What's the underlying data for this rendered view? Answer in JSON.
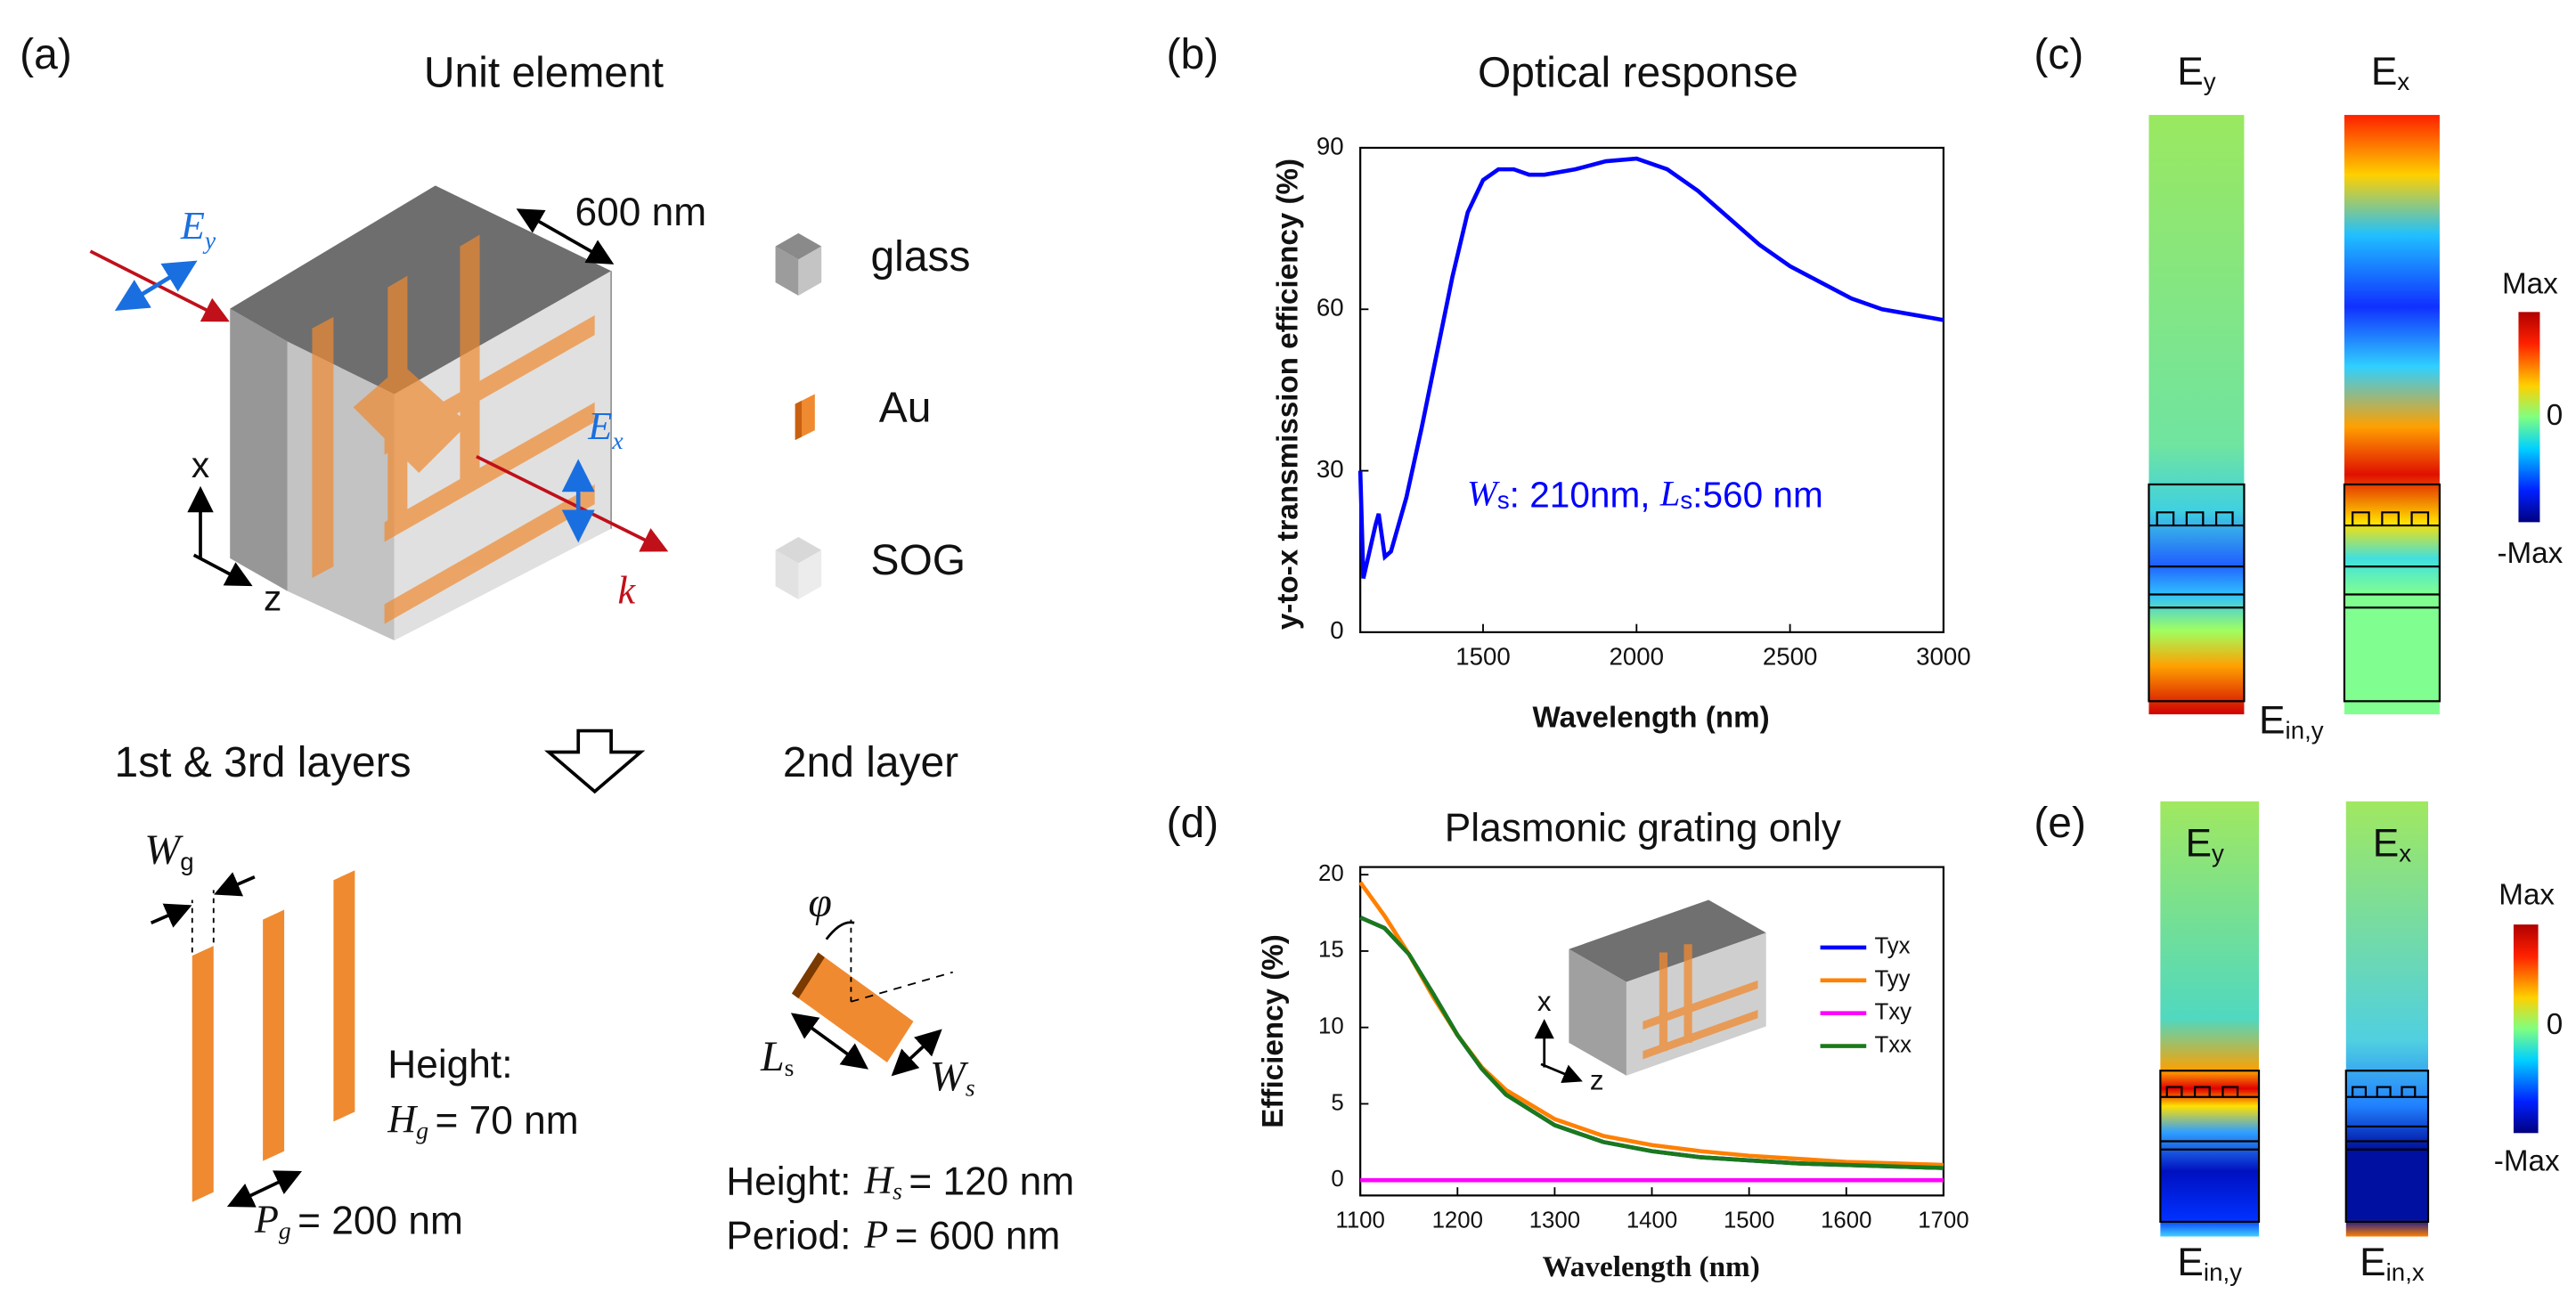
{
  "panel_labels": [
    "(a)",
    "(b)",
    "(c)",
    "(d)",
    "(e)"
  ],
  "unit_element": {
    "title": "Unit element",
    "dimension": "600 nm",
    "axes": [
      "x",
      "z"
    ],
    "field_y": [
      "E",
      "y"
    ],
    "field_x": [
      "E",
      "x"
    ],
    "wavevector": "k",
    "legend": [
      "glass",
      "Au",
      "SOG"
    ]
  },
  "layers": {
    "first_third": {
      "title": "1st & 3rd layers",
      "width": [
        "W",
        "g"
      ],
      "height_label": "Height:",
      "height": [
        "H",
        "g",
        "= 70 nm"
      ],
      "period": [
        "P",
        "g",
        "= 200 nm"
      ]
    },
    "second": {
      "title": "2nd layer",
      "angle": "φ",
      "length": [
        "L",
        "s"
      ],
      "width": [
        "W",
        "s"
      ],
      "height": [
        "Height:",
        "H",
        "s",
        "= 120 nm"
      ],
      "period": [
        "Period:",
        "P",
        "= 600 nm"
      ]
    }
  },
  "chart_data": [
    {
      "type": "line",
      "title": "Optical response",
      "x_label": "Wavelength (nm)",
      "y_label": "y-to-x transmission efficiency (%)",
      "annotation": [
        "W",
        "s",
        ": 210nm, ",
        "L",
        "s",
        ":560 nm"
      ],
      "x": [
        1100,
        1110,
        1130,
        1150,
        1160,
        1180,
        1200,
        1250,
        1300,
        1350,
        1400,
        1450,
        1500,
        1550,
        1600,
        1650,
        1700,
        1800,
        1900,
        2000,
        2100,
        2200,
        2300,
        2400,
        2500,
        2600,
        2700,
        2800,
        2900,
        3000
      ],
      "values": [
        30,
        10,
        15,
        20,
        22,
        14,
        15,
        25,
        38,
        52,
        66,
        78,
        84,
        86,
        86,
        85,
        85,
        86,
        87.5,
        88,
        86,
        82,
        77,
        72,
        68,
        65,
        62,
        60,
        59,
        58
      ],
      "color": "#0000ff",
      "xlim": [
        1100,
        3000
      ],
      "ylim": [
        0,
        90
      ],
      "xticks": [
        1500,
        2000,
        2500,
        3000
      ],
      "yticks": [
        0,
        30,
        60,
        90
      ]
    },
    {
      "type": "line",
      "title": "Plasmonic grating only",
      "x_label": "Wavelength (nm)",
      "y_label": "Efficiency (%)",
      "inset_axes": [
        "x",
        "z"
      ],
      "legend": "upper right",
      "x": [
        1100,
        1125,
        1150,
        1175,
        1200,
        1225,
        1250,
        1300,
        1350,
        1400,
        1450,
        1500,
        1550,
        1600,
        1650,
        1700
      ],
      "series": [
        {
          "name": "Tyx",
          "color": "#0000ff",
          "values": [
            17.2,
            16.5,
            14.8,
            12.2,
            9.5,
            7.3,
            5.6,
            3.6,
            2.5,
            1.9,
            1.5,
            1.3,
            1.1,
            1.0,
            0.9,
            0.8
          ]
        },
        {
          "name": "Tyy",
          "color": "#ff8000",
          "values": [
            19.5,
            17.3,
            14.8,
            12,
            9.5,
            7.4,
            5.9,
            4.0,
            2.9,
            2.3,
            1.9,
            1.6,
            1.4,
            1.2,
            1.1,
            1.0
          ]
        },
        {
          "name": "Txy",
          "color": "#ff00ff",
          "values": [
            0,
            0,
            0,
            0,
            0,
            0,
            0,
            0,
            0,
            0,
            0,
            0,
            0,
            0,
            0,
            0
          ]
        },
        {
          "name": "Txx",
          "color": "#1a7a1a",
          "values": [
            17.2,
            16.5,
            14.8,
            12.2,
            9.5,
            7.3,
            5.6,
            3.6,
            2.5,
            1.9,
            1.5,
            1.3,
            1.1,
            1.0,
            0.9,
            0.8
          ]
        }
      ],
      "xlim": [
        1100,
        1700
      ],
      "ylim": [
        -1,
        20.5
      ],
      "xticks": [
        1100,
        1200,
        1300,
        1400,
        1500,
        1600,
        1700
      ],
      "yticks": [
        0,
        5,
        10,
        15,
        20
      ]
    }
  ],
  "field_maps": {
    "c": {
      "columns": [
        [
          "E",
          "y"
        ],
        [
          "E",
          "x"
        ]
      ],
      "input": [
        "E",
        "in,y"
      ],
      "colorbar": [
        "Max",
        "0",
        "-Max"
      ]
    },
    "e": {
      "columns": [
        [
          "E",
          "y"
        ],
        [
          "E",
          "x"
        ]
      ],
      "inputs": [
        [
          "E",
          "in,y"
        ],
        [
          "E",
          "in,x"
        ]
      ],
      "colorbar": [
        "Max",
        "0",
        "-Max"
      ]
    }
  }
}
